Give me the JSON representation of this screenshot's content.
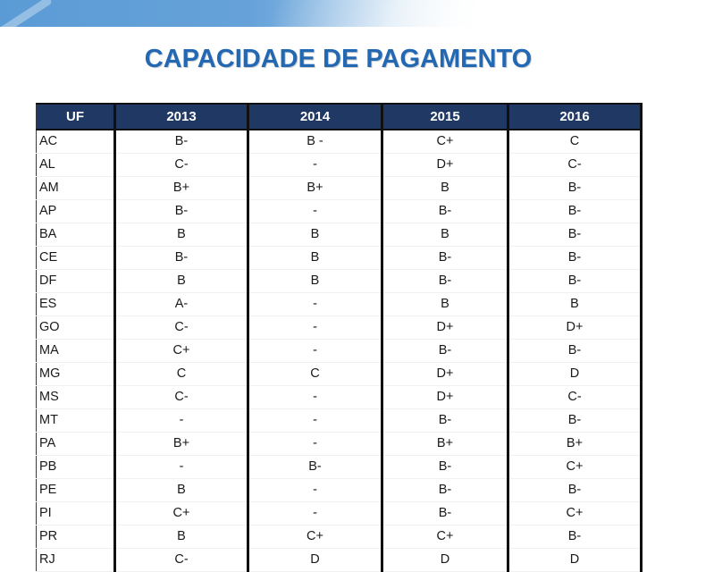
{
  "slide": {
    "title": "CAPACIDADE DE PAGAMENTO"
  },
  "table": {
    "columns": [
      "UF",
      "2013",
      "2014",
      "2015",
      "2016"
    ],
    "rows": [
      [
        "AC",
        "B-",
        "B -",
        "C+",
        "C"
      ],
      [
        "AL",
        "C-",
        "-",
        "D+",
        "C-"
      ],
      [
        "AM",
        "B+",
        "B+",
        "B",
        "B-"
      ],
      [
        "AP",
        "B-",
        "-",
        "B-",
        "B-"
      ],
      [
        "BA",
        "B",
        "B",
        "B",
        "B-"
      ],
      [
        "CE",
        "B-",
        "B",
        "B-",
        "B-"
      ],
      [
        "DF",
        "B",
        "B",
        "B-",
        "B-"
      ],
      [
        "ES",
        "A-",
        "-",
        "B",
        "B"
      ],
      [
        "GO",
        "C-",
        "-",
        "D+",
        "D+"
      ],
      [
        "MA",
        "C+",
        "-",
        "B-",
        "B-"
      ],
      [
        "MG",
        "C",
        "C",
        "D+",
        "D"
      ],
      [
        "MS",
        "C-",
        "-",
        "D+",
        "C-"
      ],
      [
        "MT",
        "-",
        "-",
        "B-",
        "B-"
      ],
      [
        "PA",
        "B+",
        "-",
        "B+",
        "B+"
      ],
      [
        "PB",
        "-",
        "B-",
        "B-",
        "C+"
      ],
      [
        "PE",
        "B",
        "-",
        "B-",
        "B-"
      ],
      [
        "PI",
        "C+",
        "-",
        "B-",
        "C+"
      ],
      [
        "PR",
        "B",
        "C+",
        "C+",
        "B-"
      ],
      [
        "RJ",
        "C-",
        "D",
        "D",
        "D"
      ]
    ]
  },
  "colors": {
    "header_bg": "#1F3864",
    "title_blue": "#2268B2",
    "banner_blue": "#5B9BD5"
  }
}
